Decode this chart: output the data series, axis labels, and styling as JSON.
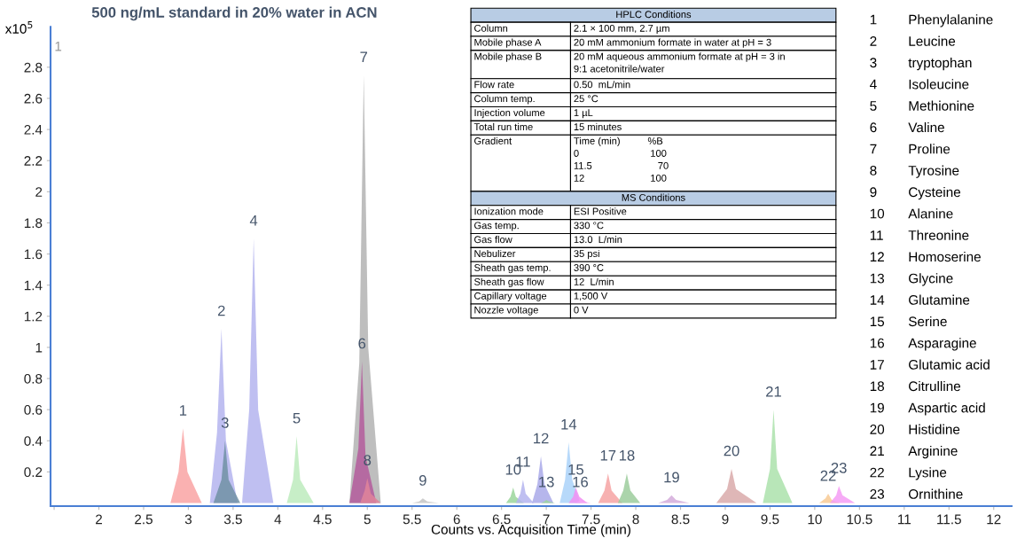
{
  "chart_data": {
    "type": "area",
    "title": "500 ng/mL standard in 20% water in ACN",
    "xlabel": "Counts vs. Acquisition Time (min)",
    "ylabel": "x10$^{5}$",
    "xlim": [
      1.46,
      12.2
    ],
    "ylim": [
      -0.02,
      3.06
    ],
    "xticks": [
      {
        "value": 1.5,
        "label": null
      },
      2,
      2.5,
      3,
      3.5,
      4,
      4.5,
      5,
      5.5,
      6,
      6.5,
      7,
      7.5,
      8,
      8.5,
      9,
      9.5,
      10,
      10.5,
      11,
      11.5,
      12
    ],
    "yticks": [
      0.2,
      0.4,
      0.6,
      0.8,
      1,
      1.2,
      1.4,
      1.6,
      1.8,
      2,
      2.2,
      2.4,
      2.6,
      2.8
    ],
    "grid": false,
    "series": [
      {
        "color": "#f9a3a3",
        "x": [
          2.8,
          2.89,
          2.94,
          2.99,
          3.15
        ],
        "values": [
          0,
          0.2,
          0.48,
          0.2,
          0
        ]
      },
      {
        "color": "#b4b4ef",
        "x": [
          3.24,
          3.32,
          3.37,
          3.42,
          3.55
        ],
        "values": [
          0,
          0.45,
          1.12,
          0.4,
          0
        ]
      },
      {
        "color": "#7090a4",
        "x": [
          3.28,
          3.37,
          3.41,
          3.45,
          3.58
        ],
        "values": [
          0,
          0.15,
          0.4,
          0.15,
          0
        ]
      },
      {
        "color": "#b4b4ef",
        "x": [
          3.6,
          3.68,
          3.73,
          3.78,
          3.95
        ],
        "values": [
          0,
          0.6,
          1.7,
          0.6,
          0
        ]
      },
      {
        "color": "#bdebbd",
        "x": [
          4.1,
          4.17,
          4.21,
          4.25,
          4.4
        ],
        "values": [
          0,
          0.15,
          0.43,
          0.15,
          0
        ]
      },
      {
        "color": "#b3b3b3",
        "x": [
          4.8,
          4.91,
          4.96,
          5.01,
          5.15
        ],
        "values": [
          0,
          0.9,
          2.75,
          1.0,
          0
        ]
      },
      {
        "color": "#b45c9c",
        "x": [
          4.8,
          4.9,
          4.94,
          4.98,
          5.1
        ],
        "values": [
          0,
          0.35,
          0.91,
          0.3,
          0
        ]
      },
      {
        "color": "#e0849a",
        "x": [
          4.92,
          4.97,
          5.0,
          5.04,
          5.15
        ],
        "values": [
          0,
          0.08,
          0.16,
          0.06,
          0
        ]
      },
      {
        "color": "#c4c4c4",
        "x": [
          5.5,
          5.58,
          5.62,
          5.67,
          5.8
        ],
        "values": [
          0,
          0.01,
          0.03,
          0.01,
          0
        ]
      },
      {
        "color": "#9bd69b",
        "x": [
          6.55,
          6.6,
          6.63,
          6.66,
          6.75
        ],
        "values": [
          0,
          0.04,
          0.1,
          0.04,
          0
        ]
      },
      {
        "color": "#b4b4ef",
        "x": [
          6.66,
          6.71,
          6.74,
          6.77,
          6.86
        ],
        "values": [
          0,
          0.06,
          0.15,
          0.06,
          0
        ]
      },
      {
        "color": "#a9a9e9",
        "x": [
          6.84,
          6.9,
          6.94,
          6.98,
          7.08
        ],
        "values": [
          0,
          0.12,
          0.3,
          0.12,
          0
        ]
      },
      {
        "color": "#9bd69b",
        "x": [
          6.94,
          6.98,
          7.0,
          7.03,
          7.1
        ],
        "values": [
          0,
          0.01,
          0.02,
          0.01,
          0
        ]
      },
      {
        "color": "#aad2f9",
        "x": [
          7.15,
          7.21,
          7.25,
          7.29,
          7.38
        ],
        "values": [
          0,
          0.15,
          0.39,
          0.15,
          0
        ]
      },
      {
        "color": "#f28ef2",
        "x": [
          7.25,
          7.3,
          7.33,
          7.37,
          7.46
        ],
        "values": [
          0,
          0.04,
          0.1,
          0.04,
          0
        ]
      },
      {
        "color": "#f3a6f3",
        "x": [
          7.32,
          7.36,
          7.38,
          7.41,
          7.5
        ],
        "values": [
          0,
          0.01,
          0.02,
          0.01,
          0
        ]
      },
      {
        "color": "#f6a3a3",
        "x": [
          7.58,
          7.65,
          7.69,
          7.73,
          7.85
        ],
        "values": [
          0,
          0.08,
          0.19,
          0.08,
          0
        ]
      },
      {
        "color": "#9ccc9c",
        "x": [
          7.8,
          7.86,
          7.9,
          7.94,
          8.05
        ],
        "values": [
          0,
          0.08,
          0.19,
          0.08,
          0
        ]
      },
      {
        "color": "#d3abdb",
        "x": [
          8.25,
          8.35,
          8.4,
          8.45,
          8.6
        ],
        "values": [
          0,
          0.02,
          0.05,
          0.02,
          0
        ]
      },
      {
        "color": "#d9aaaa",
        "x": [
          8.9,
          9.02,
          9.07,
          9.12,
          9.35
        ],
        "values": [
          0,
          0.09,
          0.22,
          0.09,
          0
        ]
      },
      {
        "color": "#abe2ab",
        "x": [
          9.42,
          9.5,
          9.54,
          9.58,
          9.75
        ],
        "values": [
          0,
          0.22,
          0.6,
          0.22,
          0
        ]
      },
      {
        "color": "#f8ca94",
        "x": [
          10.05,
          10.12,
          10.15,
          10.19,
          10.28
        ],
        "values": [
          0,
          0.03,
          0.06,
          0.02,
          0
        ]
      },
      {
        "color": "#f59cf5",
        "x": [
          10.17,
          10.24,
          10.27,
          10.31,
          10.45
        ],
        "values": [
          0,
          0.05,
          0.11,
          0.05,
          0
        ]
      }
    ],
    "annotations": [
      {
        "text": "1",
        "x": 2.94,
        "y": 0.48
      },
      {
        "text": "2",
        "x": 3.37,
        "y": 1.12
      },
      {
        "text": "3",
        "x": 3.41,
        "y": 0.4
      },
      {
        "text": "4",
        "x": 3.73,
        "y": 1.7
      },
      {
        "text": "5",
        "x": 4.21,
        "y": 0.43
      },
      {
        "text": "6",
        "x": 4.94,
        "y": 0.91
      },
      {
        "text": "7",
        "x": 4.96,
        "y": 2.75
      },
      {
        "text": "8",
        "x": 5.0,
        "y": 0.16
      },
      {
        "text": "9",
        "x": 5.62,
        "y": 0.03
      },
      {
        "text": "10",
        "x": 6.63,
        "y": 0.1
      },
      {
        "text": "11",
        "x": 6.74,
        "y": 0.15
      },
      {
        "text": "12",
        "x": 6.94,
        "y": 0.3
      },
      {
        "text": "13",
        "x": 7.0,
        "y": 0.02
      },
      {
        "text": "14",
        "x": 7.25,
        "y": 0.39
      },
      {
        "text": "15",
        "x": 7.33,
        "y": 0.1
      },
      {
        "text": "16",
        "x": 7.38,
        "y": 0.02
      },
      {
        "text": "17",
        "x": 7.69,
        "y": 0.19
      },
      {
        "text": "18",
        "x": 7.9,
        "y": 0.19
      },
      {
        "text": "19",
        "x": 8.4,
        "y": 0.05
      },
      {
        "text": "20",
        "x": 9.07,
        "y": 0.22
      },
      {
        "text": "21",
        "x": 9.54,
        "y": 0.6
      },
      {
        "text": "22",
        "x": 10.15,
        "y": 0.06
      },
      {
        "text": "23",
        "x": 10.27,
        "y": 0.11
      },
      "1",
      "HPLC Conditions",
      "Column\t2.1 × 100 mm, 2.7 µm",
      "Mobile phase A\t20 mM ammonium formate in water at pH = 3",
      "Mobile phase B\t20 mM aqueous ammonium formate at pH = 3 in\n9:1 acetonitrile/water",
      "Flow rate\t0.50  mL/min",
      "Column temp.\t25 °C",
      "Injection volume\t1 µL",
      "Total run time\t15 minutes",
      "Gradient\tTime (min)          %B\n0                          100\n11.5                        70\n12                        100",
      "MS Conditions",
      "Ionization mode\tESI Positive",
      "Gas temp.\t330 °C",
      "Gas flow\t13.0  L/min",
      "Nebulizer\t35 psi",
      "Sheath gas temp.\t390 °C",
      "Sheath gas flow\t12  L/min",
      "Capillary voltage\t1,500 V",
      "Nozzle voltage\t0 V",
      "1\tPhenylalanine",
      "2\tLeucine",
      "3\ttryptophan",
      "4\tIsoleucine",
      "5\tMethionine",
      "6\tValine",
      "7\tProline",
      "8\tTyrosine",
      "9\tCysteine",
      "10\tAlanine",
      "11\tThreonine",
      "12\tHomoserine",
      "13\tGlycine",
      "14\tGlutamine",
      "15\tSerine",
      "16\tAsparagine",
      "17\tGlutamic acid",
      "18\tCitrulline",
      "19\tAspartic acid",
      "20\tHistidine",
      "21\tArginine",
      "22\tLysine",
      "23\tOrnithine"
    ]
  }
}
